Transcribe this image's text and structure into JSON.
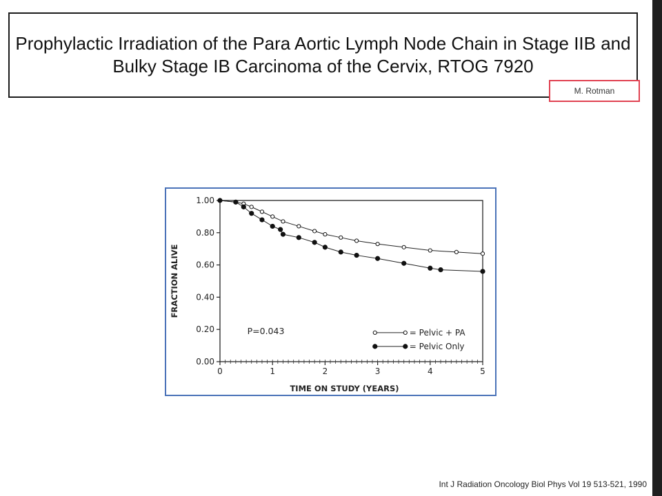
{
  "slide": {
    "title": "Prophylactic Irradiation of the Para Aortic Lymph Node Chain in Stage IIB and Bulky Stage IB Carcinoma of the Cervix, RTOG 7920",
    "author": "M. Rotman",
    "citation": "Int J Radiation Oncology Biol Phys Vol 19 513-521, 1990",
    "colors": {
      "chart_frame": "#4a72b8",
      "author_frame": "#e04050",
      "right_bar": "#1f1f1f"
    }
  },
  "chart_data": {
    "type": "line",
    "xlabel": "TIME ON STUDY (YEARS)",
    "ylabel": "FRACTION ALIVE",
    "xlim": [
      0,
      5
    ],
    "ylim": [
      0,
      1
    ],
    "x_ticks": [
      "0",
      "1",
      "2",
      "3",
      "4",
      "5"
    ],
    "y_ticks": [
      "0.00",
      "0.20",
      "0.40",
      "0.60",
      "0.80",
      "1.00"
    ],
    "annotation": "P=0.043",
    "legend_position": "bottom-right",
    "series": [
      {
        "name": "Pelvic + PA",
        "marker": "open-circle",
        "x": [
          0,
          0.3,
          0.45,
          0.6,
          0.8,
          1.0,
          1.2,
          1.5,
          1.8,
          2.0,
          2.3,
          2.6,
          3.0,
          3.5,
          4.0,
          4.5,
          5.0
        ],
        "y": [
          1.0,
          0.99,
          0.98,
          0.96,
          0.93,
          0.9,
          0.87,
          0.84,
          0.81,
          0.79,
          0.77,
          0.75,
          0.73,
          0.71,
          0.69,
          0.68,
          0.67
        ]
      },
      {
        "name": "Pelvic Only",
        "marker": "filled-circle",
        "x": [
          0,
          0.3,
          0.45,
          0.6,
          0.8,
          1.0,
          1.15,
          1.2,
          1.5,
          1.8,
          2.0,
          2.3,
          2.6,
          3.0,
          3.5,
          4.0,
          4.2,
          5.0
        ],
        "y": [
          1.0,
          0.99,
          0.96,
          0.92,
          0.88,
          0.84,
          0.82,
          0.79,
          0.77,
          0.74,
          0.71,
          0.68,
          0.66,
          0.64,
          0.61,
          0.58,
          0.57,
          0.56
        ]
      }
    ]
  }
}
